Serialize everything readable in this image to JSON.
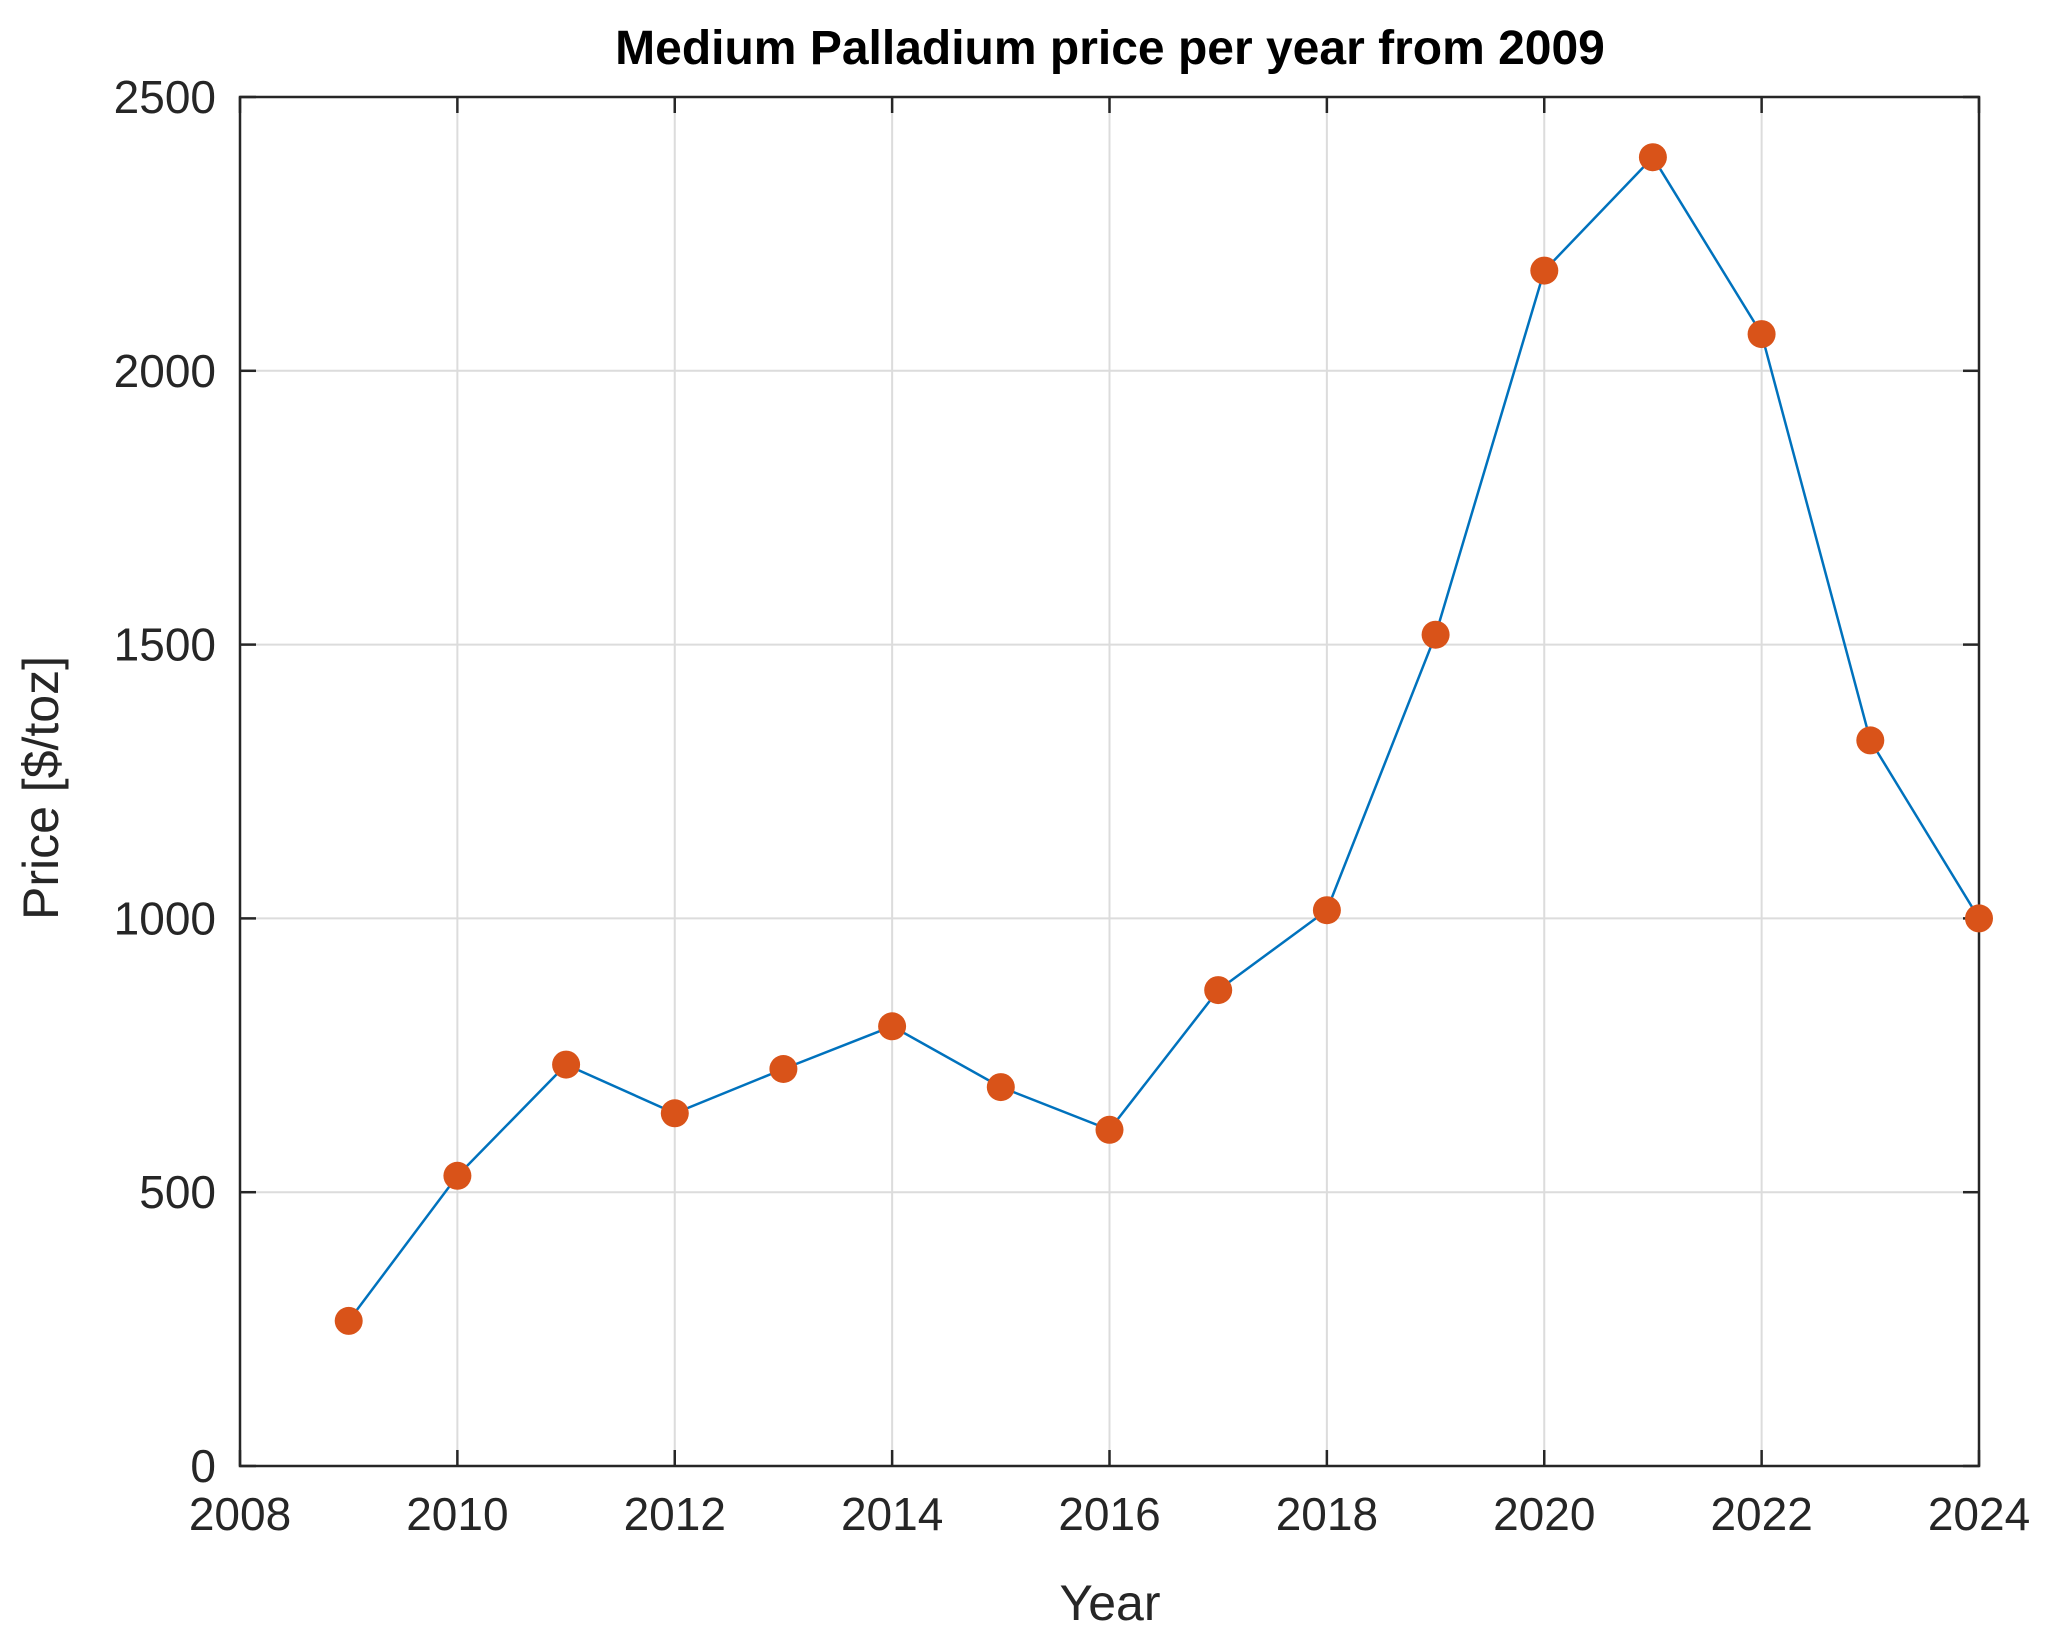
{
  "chart_data": {
    "type": "line",
    "title": "Medium Palladium price per year from 2009",
    "xlabel": "Year",
    "ylabel": "Price [$/toz]",
    "xlim": [
      2008,
      2024
    ],
    "ylim": [
      0,
      2500
    ],
    "xticks": [
      "2008",
      "2010",
      "2012",
      "2014",
      "2016",
      "2018",
      "2020",
      "2022",
      "2024"
    ],
    "yticks": [
      "0",
      "500",
      "1000",
      "1500",
      "2000",
      "2500"
    ],
    "grid": true,
    "legend": "none",
    "series": [
      {
        "x": [
          2009,
          2010,
          2011,
          2012,
          2013,
          2014,
          2015,
          2016,
          2017,
          2018,
          2019,
          2020,
          2021,
          2022,
          2023,
          2024
        ],
        "y": [
          265,
          530,
          733,
          644,
          725,
          803,
          692,
          614,
          869,
          1015,
          1518,
          2183,
          2390,
          2067,
          1325,
          1000
        ],
        "line_color": "#0072BD",
        "marker_color": "#D95319"
      }
    ]
  }
}
